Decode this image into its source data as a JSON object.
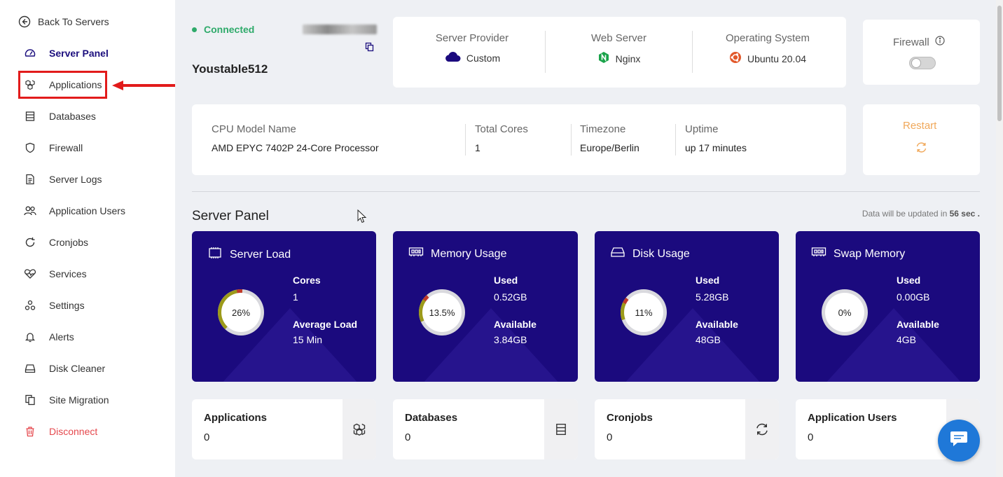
{
  "sidebar": {
    "back_label": "Back To Servers",
    "items": [
      {
        "label": "Server Panel",
        "icon": "gauge-icon"
      },
      {
        "label": "Applications",
        "icon": "cubes-icon"
      },
      {
        "label": "Databases",
        "icon": "database-icon"
      },
      {
        "label": "Firewall",
        "icon": "shield-icon"
      },
      {
        "label": "Server Logs",
        "icon": "file-icon"
      },
      {
        "label": "Application Users",
        "icon": "users-icon"
      },
      {
        "label": "Cronjobs",
        "icon": "refresh-icon"
      },
      {
        "label": "Services",
        "icon": "heartbeat-icon"
      },
      {
        "label": "Settings",
        "icon": "settings-icon"
      },
      {
        "label": "Alerts",
        "icon": "bell-icon"
      },
      {
        "label": "Disk Cleaner",
        "icon": "drive-icon"
      },
      {
        "label": "Site Migration",
        "icon": "copy-icon"
      },
      {
        "label": "Disconnect",
        "icon": "trash-icon"
      }
    ],
    "active_item": "Server Panel",
    "highlighted_item": "Applications"
  },
  "server": {
    "status": "Connected",
    "name": "Youstable512"
  },
  "info": {
    "provider_label": "Server Provider",
    "provider_value": "Custom",
    "webserver_label": "Web Server",
    "webserver_value": "Nginx",
    "os_label": "Operating System",
    "os_value": "Ubuntu 20.04",
    "firewall_label": "Firewall",
    "firewall_on": false
  },
  "system": {
    "cpu_label": "CPU Model Name",
    "cpu_value": "AMD EPYC 7402P 24-Core Processor",
    "cores_label": "Total Cores",
    "cores_value": "1",
    "timezone_label": "Timezone",
    "timezone_value": "Europe/Berlin",
    "uptime_label": "Uptime",
    "uptime_value": "up 17 minutes",
    "restart_label": "Restart"
  },
  "panel": {
    "title": "Server Panel",
    "update_prefix": "Data will be updated in",
    "update_time": "56 sec",
    "update_suffix": "."
  },
  "stats": [
    {
      "title": "Server Load",
      "icon": "chip-icon",
      "percent_label": "26%",
      "percent": 26,
      "k1": "Cores",
      "v1": "1",
      "k2": "Average Load",
      "v2": "15 Min"
    },
    {
      "title": "Memory Usage",
      "icon": "memory-icon",
      "percent_label": "13.5%",
      "percent": 13.5,
      "k1": "Used",
      "v1": "0.52GB",
      "k2": "Available",
      "v2": "3.84GB"
    },
    {
      "title": "Disk Usage",
      "icon": "drive-icon",
      "percent_label": "11%",
      "percent": 11,
      "k1": "Used",
      "v1": "5.28GB",
      "k2": "Available",
      "v2": "48GB"
    },
    {
      "title": "Swap Memory",
      "icon": "memory-icon",
      "percent_label": "0%",
      "percent": 0,
      "k1": "Used",
      "v1": "0.00GB",
      "k2": "Available",
      "v2": "4GB"
    }
  ],
  "counts": [
    {
      "label": "Applications",
      "value": "0",
      "icon": "cubes-icon"
    },
    {
      "label": "Databases",
      "value": "0",
      "icon": "database-icon"
    },
    {
      "label": "Cronjobs",
      "value": "0",
      "icon": "refresh-icon"
    },
    {
      "label": "Application Users",
      "value": "0",
      "icon": "users-icon"
    }
  ],
  "colors": {
    "accent": "#1b0a7e",
    "connected": "#2eaa6a",
    "restart": "#f0a85a",
    "disconnect": "#e5484d",
    "highlight": "#e21b1b",
    "chat": "#1f78d8"
  }
}
